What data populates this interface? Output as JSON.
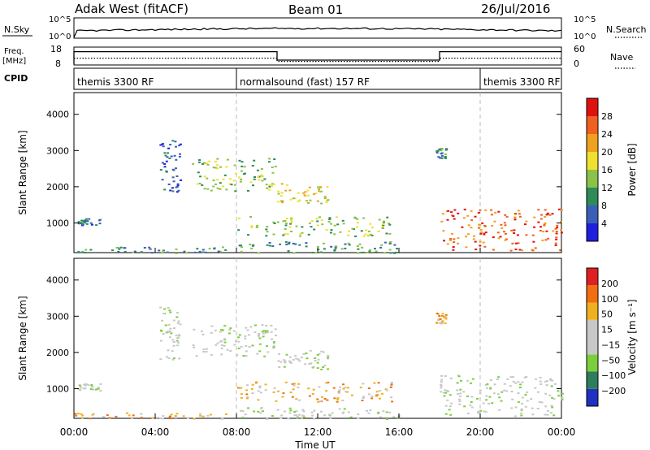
{
  "header": {
    "station": "Adak West (fitACF)",
    "beam": "Beam 01",
    "date": "26/Jul/2016"
  },
  "top_panels": {
    "nsky_label": "N.Sky",
    "nsky_ticks": [
      "10^5",
      "10^0"
    ],
    "nsearch_label": "N.Search",
    "nsearch_ticks": [
      "10^5",
      "10^0"
    ],
    "freq_label": "Freq.",
    "freq_unit": "[MHz]",
    "freq_ticks": [
      "18",
      "8"
    ],
    "nave_label": "Nave",
    "nave_ticks": [
      "60",
      "0"
    ],
    "cpid_label": "CPID",
    "cpid_segments": [
      {
        "label": "themis 3300 RF",
        "start_h": 0,
        "end_h": 8
      },
      {
        "label": "normalsound (fast) 157 RF",
        "start_h": 8,
        "end_h": 20
      },
      {
        "label": "themis 3300 RF",
        "start_h": 20,
        "end_h": 24
      }
    ],
    "freq_trace": [
      {
        "start_h": 0,
        "end_h": 10,
        "level": 0.9
      },
      {
        "start_h": 10,
        "end_h": 18,
        "level": 0.25
      },
      {
        "start_h": 18,
        "end_h": 24,
        "level": 0.9
      }
    ]
  },
  "chart_data": [
    {
      "type": "heatmap",
      "name": "power",
      "ylabel": "Slant Range [km]",
      "xlabel": "Time UT",
      "x_ticks": [
        "00:00",
        "04:00",
        "08:00",
        "12:00",
        "16:00",
        "20:00",
        "00:00"
      ],
      "y_ticks": [
        "1000",
        "2000",
        "3000",
        "4000"
      ],
      "xlim": [
        0,
        24
      ],
      "ylim": [
        180,
        4600
      ],
      "colorbar_label": "Power [dB]",
      "colorbar_ticks": [
        "4",
        "8",
        "12",
        "16",
        "20",
        "24",
        "28"
      ],
      "colorbar_colors": [
        "#1f1fe0",
        "#3b5fb8",
        "#2e8b57",
        "#8bc34a",
        "#f0e030",
        "#f0a020",
        "#f06020",
        "#e01010"
      ],
      "regions": [
        {
          "t0": 0.1,
          "t1": 1.3,
          "r0": 950,
          "r1": 1150,
          "level": 1
        },
        {
          "t0": 0.0,
          "t1": 7.5,
          "r0": 180,
          "r1": 350,
          "level": 2
        },
        {
          "t0": 5.8,
          "t1": 9.9,
          "r0": 1900,
          "r1": 2800,
          "level": 3
        },
        {
          "t0": 10.0,
          "t1": 12.5,
          "r0": 1550,
          "r1": 2100,
          "level": 4
        },
        {
          "t0": 8.0,
          "t1": 15.7,
          "r0": 650,
          "r1": 1200,
          "level": 3
        },
        {
          "t0": 8.0,
          "t1": 16.0,
          "r0": 180,
          "r1": 500,
          "level": 2
        },
        {
          "t0": 18.0,
          "t1": 24.0,
          "r0": 250,
          "r1": 1400,
          "level": 6
        },
        {
          "t0": 4.2,
          "t1": 5.2,
          "r0": 1800,
          "r1": 3300,
          "level": 1
        },
        {
          "t0": 17.8,
          "t1": 18.3,
          "r0": 2800,
          "r1": 3100,
          "level": 2
        }
      ]
    },
    {
      "type": "heatmap",
      "name": "velocity",
      "ylabel": "Slant Range [km]",
      "xlabel": "Time UT",
      "x_ticks": [
        "00:00",
        "04:00",
        "08:00",
        "12:00",
        "16:00",
        "20:00",
        "00:00"
      ],
      "y_ticks": [
        "1000",
        "2000",
        "3000",
        "4000"
      ],
      "xlim": [
        0,
        24
      ],
      "ylim": [
        180,
        4600
      ],
      "colorbar_label": "Velocity [m s⁻¹]",
      "colorbar_ticks": [
        "200",
        "100",
        "50",
        "15",
        "−15",
        "−50",
        "−100",
        "−200"
      ],
      "colorbar_colors": [
        "#2030c0",
        "#2e7d5b",
        "#7ccf3c",
        "#c8c8c8",
        "#c8c8c8",
        "#f0b020",
        "#f07010",
        "#e02020"
      ],
      "regions": [
        {
          "t0": 0.1,
          "t1": 1.3,
          "r0": 950,
          "r1": 1150,
          "level": 3
        },
        {
          "t0": 0.0,
          "t1": 7.5,
          "r0": 180,
          "r1": 350,
          "level": 5
        },
        {
          "t0": 5.8,
          "t1": 9.9,
          "r0": 1900,
          "r1": 2800,
          "level": 3
        },
        {
          "t0": 10.0,
          "t1": 12.5,
          "r0": 1550,
          "r1": 2100,
          "level": 3
        },
        {
          "t0": 8.0,
          "t1": 15.7,
          "r0": 650,
          "r1": 1200,
          "level": 5
        },
        {
          "t0": 8.0,
          "t1": 16.0,
          "r0": 180,
          "r1": 500,
          "level": 3
        },
        {
          "t0": 18.0,
          "t1": 24.0,
          "r0": 250,
          "r1": 1400,
          "level": 3
        },
        {
          "t0": 4.2,
          "t1": 5.2,
          "r0": 1800,
          "r1": 3300,
          "level": 3
        },
        {
          "t0": 17.8,
          "t1": 18.3,
          "r0": 2800,
          "r1": 3100,
          "level": 5
        }
      ]
    }
  ]
}
